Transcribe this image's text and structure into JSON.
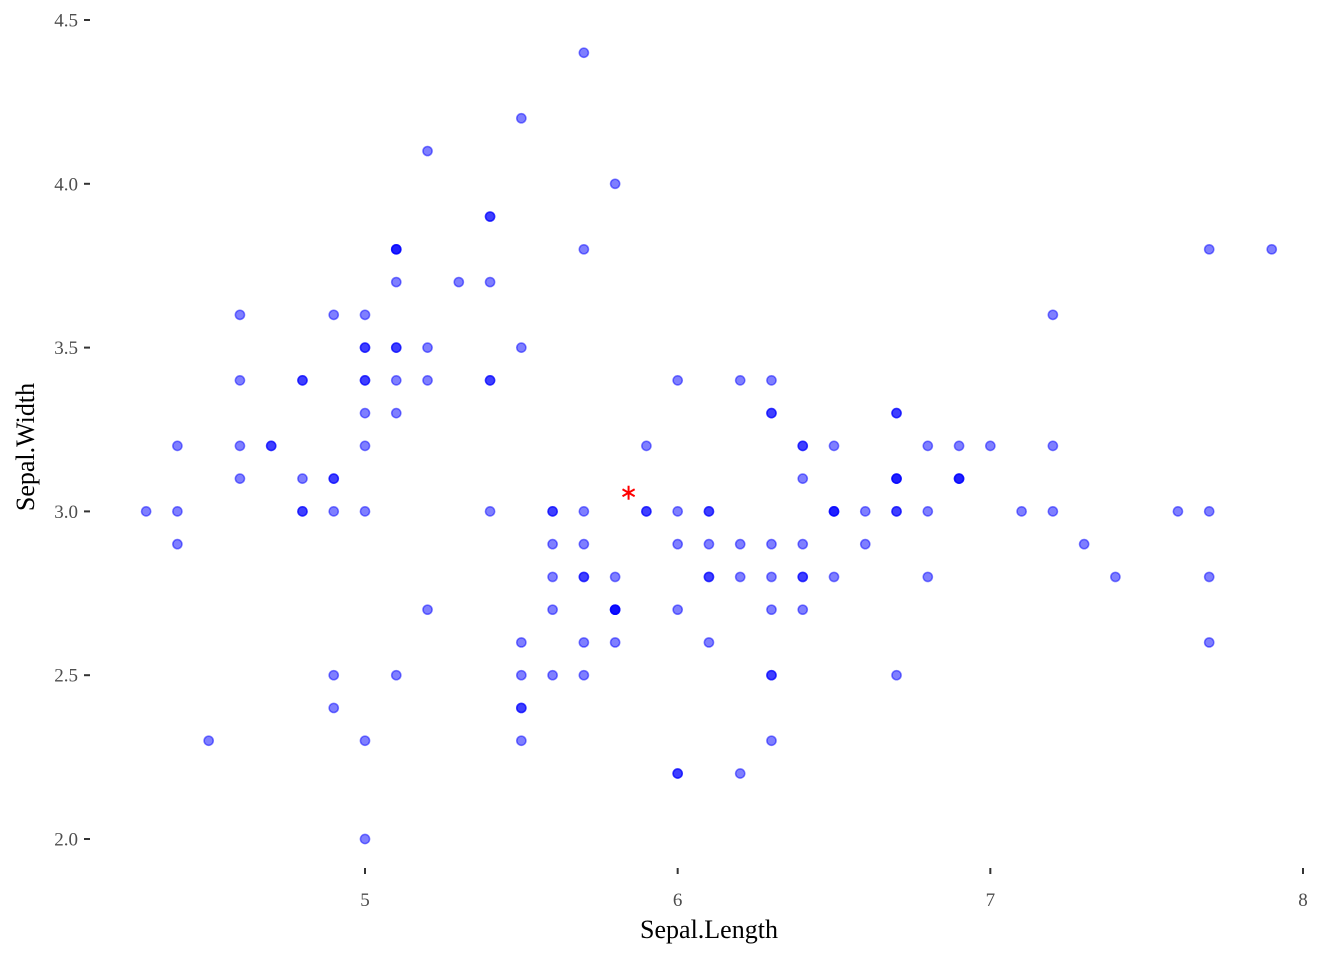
{
  "chart_data": {
    "type": "scatter",
    "xlabel": "Sepal.Length",
    "ylabel": "Sepal.Width",
    "xlim": [
      4.3,
      8.0
    ],
    "ylim": [
      1.88,
      4.52
    ],
    "x_ticks": [
      5,
      6,
      7,
      8
    ],
    "x_tick_labels": [
      "5",
      "6",
      "7",
      "8"
    ],
    "y_ticks": [
      2.0,
      2.5,
      3.0,
      3.5,
      4.0,
      4.5
    ],
    "y_tick_labels": [
      "2.0",
      "2.5",
      "3.0",
      "3.5",
      "4.0",
      "4.5"
    ],
    "grid": false,
    "legend": "none",
    "point_color": "#0000ff",
    "point_alpha": 0.5,
    "mean_marker": {
      "x": 5.843,
      "y": 3.057,
      "color": "#ff0000",
      "shape": "asterisk"
    },
    "points": [
      [
        5.1,
        3.5
      ],
      [
        4.9,
        3.0
      ],
      [
        4.7,
        3.2
      ],
      [
        4.6,
        3.1
      ],
      [
        5.0,
        3.6
      ],
      [
        5.4,
        3.9
      ],
      [
        4.6,
        3.4
      ],
      [
        5.0,
        3.4
      ],
      [
        4.4,
        2.9
      ],
      [
        4.9,
        3.1
      ],
      [
        5.4,
        3.7
      ],
      [
        4.8,
        3.4
      ],
      [
        4.8,
        3.0
      ],
      [
        4.3,
        3.0
      ],
      [
        5.8,
        4.0
      ],
      [
        5.7,
        4.4
      ],
      [
        5.4,
        3.9
      ],
      [
        5.1,
        3.5
      ],
      [
        5.7,
        3.8
      ],
      [
        5.1,
        3.8
      ],
      [
        5.4,
        3.4
      ],
      [
        5.1,
        3.7
      ],
      [
        4.6,
        3.6
      ],
      [
        5.1,
        3.3
      ],
      [
        4.8,
        3.4
      ],
      [
        5.0,
        3.0
      ],
      [
        5.0,
        3.4
      ],
      [
        5.2,
        3.5
      ],
      [
        5.2,
        3.4
      ],
      [
        4.7,
        3.2
      ],
      [
        4.8,
        3.1
      ],
      [
        5.4,
        3.4
      ],
      [
        5.2,
        4.1
      ],
      [
        5.5,
        4.2
      ],
      [
        4.9,
        3.1
      ],
      [
        5.0,
        3.2
      ],
      [
        5.5,
        3.5
      ],
      [
        4.9,
        3.6
      ],
      [
        4.4,
        3.0
      ],
      [
        5.1,
        3.4
      ],
      [
        5.0,
        3.5
      ],
      [
        4.5,
        2.3
      ],
      [
        4.4,
        3.2
      ],
      [
        5.0,
        3.5
      ],
      [
        5.1,
        3.8
      ],
      [
        4.8,
        3.0
      ],
      [
        5.1,
        3.8
      ],
      [
        4.6,
        3.2
      ],
      [
        5.3,
        3.7
      ],
      [
        5.0,
        3.3
      ],
      [
        7.0,
        3.2
      ],
      [
        6.4,
        3.2
      ],
      [
        6.9,
        3.1
      ],
      [
        5.5,
        2.3
      ],
      [
        6.5,
        2.8
      ],
      [
        5.7,
        2.8
      ],
      [
        6.3,
        3.3
      ],
      [
        4.9,
        2.4
      ],
      [
        6.6,
        2.9
      ],
      [
        5.2,
        2.7
      ],
      [
        5.0,
        2.0
      ],
      [
        5.9,
        3.0
      ],
      [
        6.0,
        2.2
      ],
      [
        6.1,
        2.9
      ],
      [
        5.6,
        2.9
      ],
      [
        6.7,
        3.1
      ],
      [
        5.6,
        3.0
      ],
      [
        5.8,
        2.7
      ],
      [
        6.2,
        2.2
      ],
      [
        5.6,
        2.5
      ],
      [
        5.9,
        3.2
      ],
      [
        6.1,
        2.8
      ],
      [
        6.3,
        2.5
      ],
      [
        6.1,
        2.8
      ],
      [
        6.4,
        2.9
      ],
      [
        6.6,
        3.0
      ],
      [
        6.8,
        2.8
      ],
      [
        6.7,
        3.0
      ],
      [
        6.0,
        2.9
      ],
      [
        5.7,
        2.6
      ],
      [
        5.5,
        2.4
      ],
      [
        5.5,
        2.4
      ],
      [
        5.8,
        2.7
      ],
      [
        6.0,
        2.7
      ],
      [
        5.4,
        3.0
      ],
      [
        6.0,
        3.4
      ],
      [
        6.7,
        3.1
      ],
      [
        6.3,
        2.3
      ],
      [
        5.6,
        3.0
      ],
      [
        5.5,
        2.5
      ],
      [
        5.5,
        2.6
      ],
      [
        6.1,
        3.0
      ],
      [
        5.8,
        2.6
      ],
      [
        5.0,
        2.3
      ],
      [
        5.6,
        2.7
      ],
      [
        5.7,
        3.0
      ],
      [
        5.7,
        2.9
      ],
      [
        6.2,
        2.9
      ],
      [
        5.1,
        2.5
      ],
      [
        5.7,
        2.8
      ],
      [
        6.3,
        3.3
      ],
      [
        5.8,
        2.7
      ],
      [
        7.1,
        3.0
      ],
      [
        6.3,
        2.9
      ],
      [
        6.5,
        3.0
      ],
      [
        7.6,
        3.0
      ],
      [
        4.9,
        2.5
      ],
      [
        7.3,
        2.9
      ],
      [
        6.7,
        2.5
      ],
      [
        7.2,
        3.6
      ],
      [
        6.5,
        3.2
      ],
      [
        6.4,
        2.7
      ],
      [
        6.8,
        3.0
      ],
      [
        5.7,
        2.5
      ],
      [
        5.8,
        2.8
      ],
      [
        6.4,
        3.2
      ],
      [
        6.5,
        3.0
      ],
      [
        7.7,
        3.8
      ],
      [
        7.7,
        2.6
      ],
      [
        6.0,
        2.2
      ],
      [
        6.9,
        3.2
      ],
      [
        5.6,
        2.8
      ],
      [
        7.7,
        2.8
      ],
      [
        6.3,
        2.7
      ],
      [
        6.7,
        3.3
      ],
      [
        7.2,
        3.2
      ],
      [
        6.2,
        2.8
      ],
      [
        6.1,
        3.0
      ],
      [
        6.4,
        2.8
      ],
      [
        7.2,
        3.0
      ],
      [
        7.4,
        2.8
      ],
      [
        7.9,
        3.8
      ],
      [
        6.4,
        2.8
      ],
      [
        6.3,
        2.8
      ],
      [
        6.1,
        2.6
      ],
      [
        7.7,
        3.0
      ],
      [
        6.3,
        3.4
      ],
      [
        6.4,
        3.1
      ],
      [
        6.0,
        3.0
      ],
      [
        6.9,
        3.1
      ],
      [
        6.7,
        3.1
      ],
      [
        6.9,
        3.1
      ],
      [
        5.8,
        2.7
      ],
      [
        6.8,
        3.2
      ],
      [
        6.7,
        3.3
      ],
      [
        6.7,
        3.0
      ],
      [
        6.3,
        2.5
      ],
      [
        6.5,
        3.0
      ],
      [
        6.2,
        3.4
      ],
      [
        5.9,
        3.0
      ]
    ]
  }
}
